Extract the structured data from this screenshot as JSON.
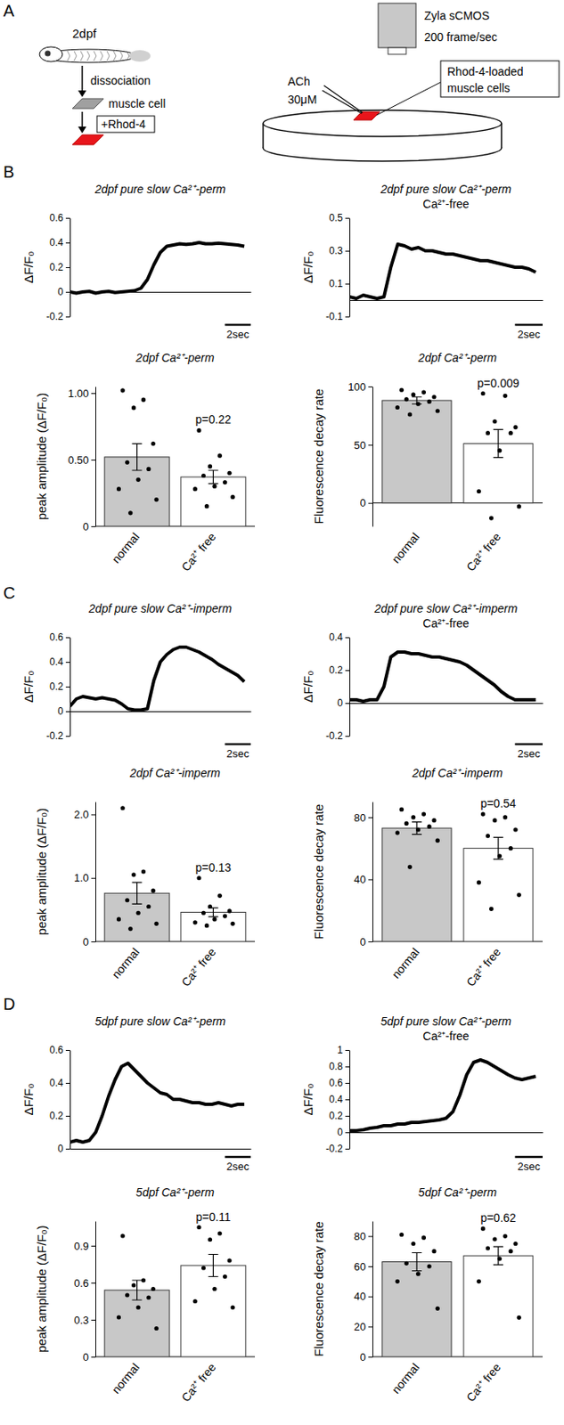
{
  "panel_labels": [
    "A",
    "B",
    "C",
    "D"
  ],
  "diagram": {
    "stage": "2dpf",
    "step": "dissociation",
    "cell": "muscle cell",
    "dye": "+Rhod-4",
    "camera": "Zyla sCMOS",
    "frame_rate": "200 frame/sec",
    "stimulus": "ACh",
    "concentration": "30μM",
    "callout": [
      "Rhod-4-loaded",
      "muscle cells"
    ]
  },
  "chart_data": [
    {
      "type": "line",
      "title": "2dpf pure slow Ca²⁺-perm",
      "y_label": "ΔF/F₀",
      "color": "#000000",
      "tick_labels": "y",
      "xlim": [
        0,
        14
      ],
      "ylim": [
        -0.2,
        0.6
      ],
      "yticks": [
        -0.2,
        0,
        0.2,
        0.4,
        0.6
      ],
      "scale_bar": {
        "value": 2,
        "label": "2sec"
      },
      "x": [
        0,
        0.5,
        1,
        1.5,
        2,
        2.5,
        3,
        3.5,
        4,
        4.5,
        5,
        5.5,
        6,
        6.5,
        7,
        7.5,
        8,
        8.5,
        9,
        9.5,
        10,
        10.5,
        11,
        11.5,
        12,
        12.5,
        13,
        13.5
      ],
      "values": [
        0,
        -0.01,
        0,
        0.005,
        -0.01,
        0,
        0.005,
        -0.005,
        0,
        0.005,
        0.01,
        0.03,
        0.1,
        0.22,
        0.32,
        0.37,
        0.38,
        0.39,
        0.385,
        0.39,
        0.4,
        0.39,
        0.39,
        0.395,
        0.39,
        0.385,
        0.38,
        0.37
      ]
    },
    {
      "type": "line",
      "title": "2dpf pure slow Ca²⁺-perm",
      "subtitle": "Ca²⁺-free",
      "y_label": "ΔF/F₀",
      "color": "#000000",
      "tick_labels": "y",
      "xlim": [
        0,
        14
      ],
      "ylim": [
        -0.1,
        0.5
      ],
      "yticks": [
        -0.1,
        0.1,
        0.3,
        0.5
      ],
      "scale_bar": {
        "value": 2,
        "label": "2sec"
      },
      "x": [
        0,
        0.5,
        1,
        1.5,
        2,
        2.5,
        3,
        3.5,
        4,
        4.5,
        5,
        5.5,
        6,
        6.5,
        7,
        7.5,
        8,
        8.5,
        9,
        9.5,
        10,
        10.5,
        11,
        11.5,
        12,
        12.5,
        13,
        13.5
      ],
      "values": [
        0.02,
        0.01,
        0.03,
        0.02,
        0.01,
        0.02,
        0.2,
        0.34,
        0.33,
        0.31,
        0.32,
        0.3,
        0.3,
        0.29,
        0.28,
        0.28,
        0.27,
        0.26,
        0.25,
        0.24,
        0.24,
        0.23,
        0.22,
        0.21,
        0.2,
        0.2,
        0.19,
        0.17
      ]
    },
    {
      "type": "bar",
      "title": "2dpf Ca²⁺-perm",
      "y_label": "peak amplitude (ΔF/F₀)",
      "categories": [
        "normal",
        "Ca²⁺ free"
      ],
      "values": [
        0.52,
        0.37
      ],
      "errors": [
        0.1,
        0.05
      ],
      "points": [
        [
          1.02,
          0.95,
          0.89,
          0.62,
          0.48,
          0.43,
          0.35,
          0.28,
          0.2,
          0.1
        ],
        [
          0.72,
          0.53,
          0.45,
          0.4,
          0.38,
          0.33,
          0.3,
          0.28,
          0.22,
          0.15
        ]
      ],
      "colors": [
        "#c8c8c8",
        "#ffffff"
      ],
      "ylim": [
        0,
        1.05
      ],
      "yticks": [
        0,
        {
          "value": 0.5,
          "label": "0.50"
        },
        {
          "value": 1,
          "label": "1.00"
        }
      ],
      "annotation": "p=0.22"
    },
    {
      "type": "bar",
      "title": "2dpf Ca²⁺-perm",
      "y_label": "Fluorescence decay rate",
      "categories": [
        "normal",
        "Ca²⁺ free"
      ],
      "values": [
        88,
        51
      ],
      "errors": [
        3,
        12
      ],
      "points": [
        [
          97,
          95,
          93,
          91,
          89,
          87,
          85,
          82,
          79,
          76
        ],
        [
          94,
          92,
          70,
          65,
          60,
          60,
          45,
          10,
          -3,
          -13
        ]
      ],
      "colors": [
        "#c8c8c8",
        "#ffffff"
      ],
      "ylim": [
        -20,
        100
      ],
      "yticks": [
        0,
        50,
        100
      ],
      "annotation": "p=0.009"
    },
    {
      "type": "line",
      "title": "2dpf pure slow Ca²⁺-imperm",
      "y_label": "ΔF/F₀",
      "color": "#000000",
      "tick_labels": "y",
      "xlim": [
        0,
        14
      ],
      "ylim": [
        -0.2,
        0.6
      ],
      "yticks": [
        -0.2,
        0,
        0.2,
        0.4,
        0.6
      ],
      "scale_bar": {
        "value": 2,
        "label": "2sec"
      },
      "x": [
        0,
        0.5,
        1,
        1.5,
        2,
        2.5,
        3,
        3.5,
        4,
        4.5,
        5,
        5.5,
        6,
        6.5,
        7,
        7.5,
        8,
        8.5,
        9,
        9.5,
        10,
        10.5,
        11,
        11.5,
        12,
        12.5,
        13,
        13.5
      ],
      "values": [
        0.04,
        0.1,
        0.12,
        0.11,
        0.1,
        0.11,
        0.1,
        0.09,
        0.06,
        0.02,
        0.01,
        0.01,
        0.02,
        0.25,
        0.4,
        0.46,
        0.5,
        0.52,
        0.52,
        0.5,
        0.48,
        0.45,
        0.42,
        0.38,
        0.35,
        0.32,
        0.29,
        0.24
      ]
    },
    {
      "type": "line",
      "title": "2dpf pure slow Ca²⁺-imperm",
      "subtitle": "Ca²⁺-free",
      "y_label": "ΔF/F₀",
      "color": "#000000",
      "tick_labels": "y",
      "xlim": [
        0,
        14
      ],
      "ylim": [
        -0.2,
        0.4
      ],
      "yticks": [
        -0.2,
        0,
        0.2,
        0.4
      ],
      "scale_bar": {
        "value": 2,
        "label": "2sec"
      },
      "x": [
        0,
        0.5,
        1,
        1.5,
        2,
        2.5,
        3,
        3.5,
        4,
        4.5,
        5,
        5.5,
        6,
        6.5,
        7,
        7.5,
        8,
        8.5,
        9,
        9.5,
        10,
        10.5,
        11,
        11.5,
        12,
        12.5,
        13,
        13.5
      ],
      "values": [
        0.02,
        0.02,
        0.01,
        0.02,
        0.02,
        0.1,
        0.28,
        0.31,
        0.31,
        0.3,
        0.3,
        0.29,
        0.28,
        0.28,
        0.27,
        0.26,
        0.25,
        0.23,
        0.2,
        0.17,
        0.14,
        0.11,
        0.07,
        0.04,
        0.02,
        0.02,
        0.02,
        0.02
      ]
    },
    {
      "type": "bar",
      "title": "2dpf Ca²⁺-imperm",
      "y_label": "peak amplitude (ΔF/F₀)",
      "categories": [
        "normal",
        "Ca²⁺ free"
      ],
      "values": [
        0.76,
        0.46
      ],
      "errors": [
        0.17,
        0.07
      ],
      "points": [
        [
          2.1,
          1.1,
          1.05,
          0.8,
          0.65,
          0.55,
          0.45,
          0.35,
          0.28,
          0.2
        ],
        [
          1.0,
          0.72,
          0.55,
          0.48,
          0.45,
          0.4,
          0.35,
          0.3,
          0.28,
          0.25
        ]
      ],
      "colors": [
        "#c8c8c8",
        "#ffffff"
      ],
      "ylim": [
        0,
        2.2
      ],
      "yticks": [
        0,
        {
          "value": 1,
          "label": "1.0"
        },
        {
          "value": 2,
          "label": "2.0"
        }
      ],
      "annotation": "p=0.13"
    },
    {
      "type": "bar",
      "title": "2dpf Ca²⁺-imperm",
      "y_label": "Fluorescence decay rate",
      "categories": [
        "normal",
        "Ca²⁺ free"
      ],
      "values": [
        73,
        60
      ],
      "errors": [
        4,
        7
      ],
      "points": [
        [
          85,
          82,
          80,
          78,
          76,
          74,
          72,
          70,
          65,
          48
        ],
        [
          82,
          80,
          78,
          72,
          68,
          60,
          55,
          38,
          30,
          21
        ]
      ],
      "colors": [
        "#c8c8c8",
        "#ffffff"
      ],
      "ylim": [
        0,
        90
      ],
      "yticks": [
        0,
        40,
        80
      ],
      "annotation": "p=0.54"
    },
    {
      "type": "line",
      "title": "5dpf pure slow Ca²⁺-perm",
      "y_label": "ΔF/F₀",
      "color": "#000000",
      "tick_labels": "y",
      "xlim": [
        0,
        14
      ],
      "ylim": [
        0,
        0.6
      ],
      "yticks": [
        0,
        0.2,
        0.4,
        0.6
      ],
      "scale_bar": {
        "value": 2,
        "label": "2sec"
      },
      "x": [
        0,
        0.5,
        1,
        1.5,
        2,
        2.5,
        3,
        3.5,
        4,
        4.5,
        5,
        5.5,
        6,
        6.5,
        7,
        7.5,
        8,
        8.5,
        9,
        9.5,
        10,
        10.5,
        11,
        11.5,
        12,
        12.5,
        13,
        13.5
      ],
      "values": [
        0.04,
        0.05,
        0.04,
        0.05,
        0.1,
        0.2,
        0.32,
        0.42,
        0.5,
        0.52,
        0.48,
        0.44,
        0.4,
        0.37,
        0.34,
        0.33,
        0.3,
        0.3,
        0.29,
        0.28,
        0.28,
        0.27,
        0.27,
        0.28,
        0.27,
        0.26,
        0.27,
        0.27
      ]
    },
    {
      "type": "line",
      "title": "5dpf pure slow Ca²⁺-perm",
      "subtitle": "Ca²⁺-free",
      "y_label": "ΔF/F₀",
      "color": "#000000",
      "tick_labels": "y",
      "xlim": [
        0,
        14
      ],
      "ylim": [
        -0.2,
        1
      ],
      "yticks": [
        -0.2,
        0,
        0.2,
        0.4,
        0.6,
        0.8,
        1
      ],
      "scale_bar": {
        "value": 2,
        "label": "2sec"
      },
      "x": [
        0,
        0.5,
        1,
        1.5,
        2,
        2.5,
        3,
        3.5,
        4,
        4.5,
        5,
        5.5,
        6,
        6.5,
        7,
        7.5,
        8,
        8.5,
        9,
        9.5,
        10,
        10.5,
        11,
        11.5,
        12,
        12.5,
        13,
        13.5
      ],
      "values": [
        0.02,
        0.02,
        0.03,
        0.05,
        0.06,
        0.08,
        0.08,
        0.1,
        0.1,
        0.12,
        0.12,
        0.13,
        0.14,
        0.15,
        0.17,
        0.25,
        0.45,
        0.7,
        0.85,
        0.88,
        0.85,
        0.8,
        0.75,
        0.7,
        0.66,
        0.64,
        0.66,
        0.68
      ]
    },
    {
      "type": "bar",
      "title": "5dpf Ca²⁺-perm",
      "y_label": "peak amplitude (ΔF/F₀)",
      "categories": [
        "normal",
        "Ca²⁺ free"
      ],
      "values": [
        0.54,
        0.74
      ],
      "errors": [
        0.08,
        0.09
      ],
      "points": [
        [
          0.98,
          0.62,
          0.58,
          0.55,
          0.5,
          0.48,
          0.4,
          0.32,
          0.23
        ],
        [
          1.05,
          1.0,
          0.95,
          0.78,
          0.72,
          0.65,
          0.55,
          0.45,
          0.4
        ]
      ],
      "colors": [
        "#c8c8c8",
        "#ffffff"
      ],
      "ylim": [
        0,
        1.1
      ],
      "yticks": [
        0,
        0.3,
        0.6,
        0.9
      ],
      "annotation": "p=0.11"
    },
    {
      "type": "bar",
      "title": "5dpf Ca²⁺-perm",
      "y_label": "Fluorescence decay rate",
      "categories": [
        "normal",
        "Ca²⁺ free"
      ],
      "values": [
        63,
        67
      ],
      "errors": [
        6,
        6
      ],
      "points": [
        [
          81,
          79,
          75,
          70,
          62,
          60,
          55,
          50,
          32
        ],
        [
          85,
          80,
          78,
          75,
          72,
          70,
          65,
          50,
          26
        ]
      ],
      "colors": [
        "#c8c8c8",
        "#ffffff"
      ],
      "ylim": [
        0,
        90
      ],
      "yticks": [
        0,
        20,
        40,
        60,
        80
      ],
      "annotation": "p=0.62"
    }
  ]
}
